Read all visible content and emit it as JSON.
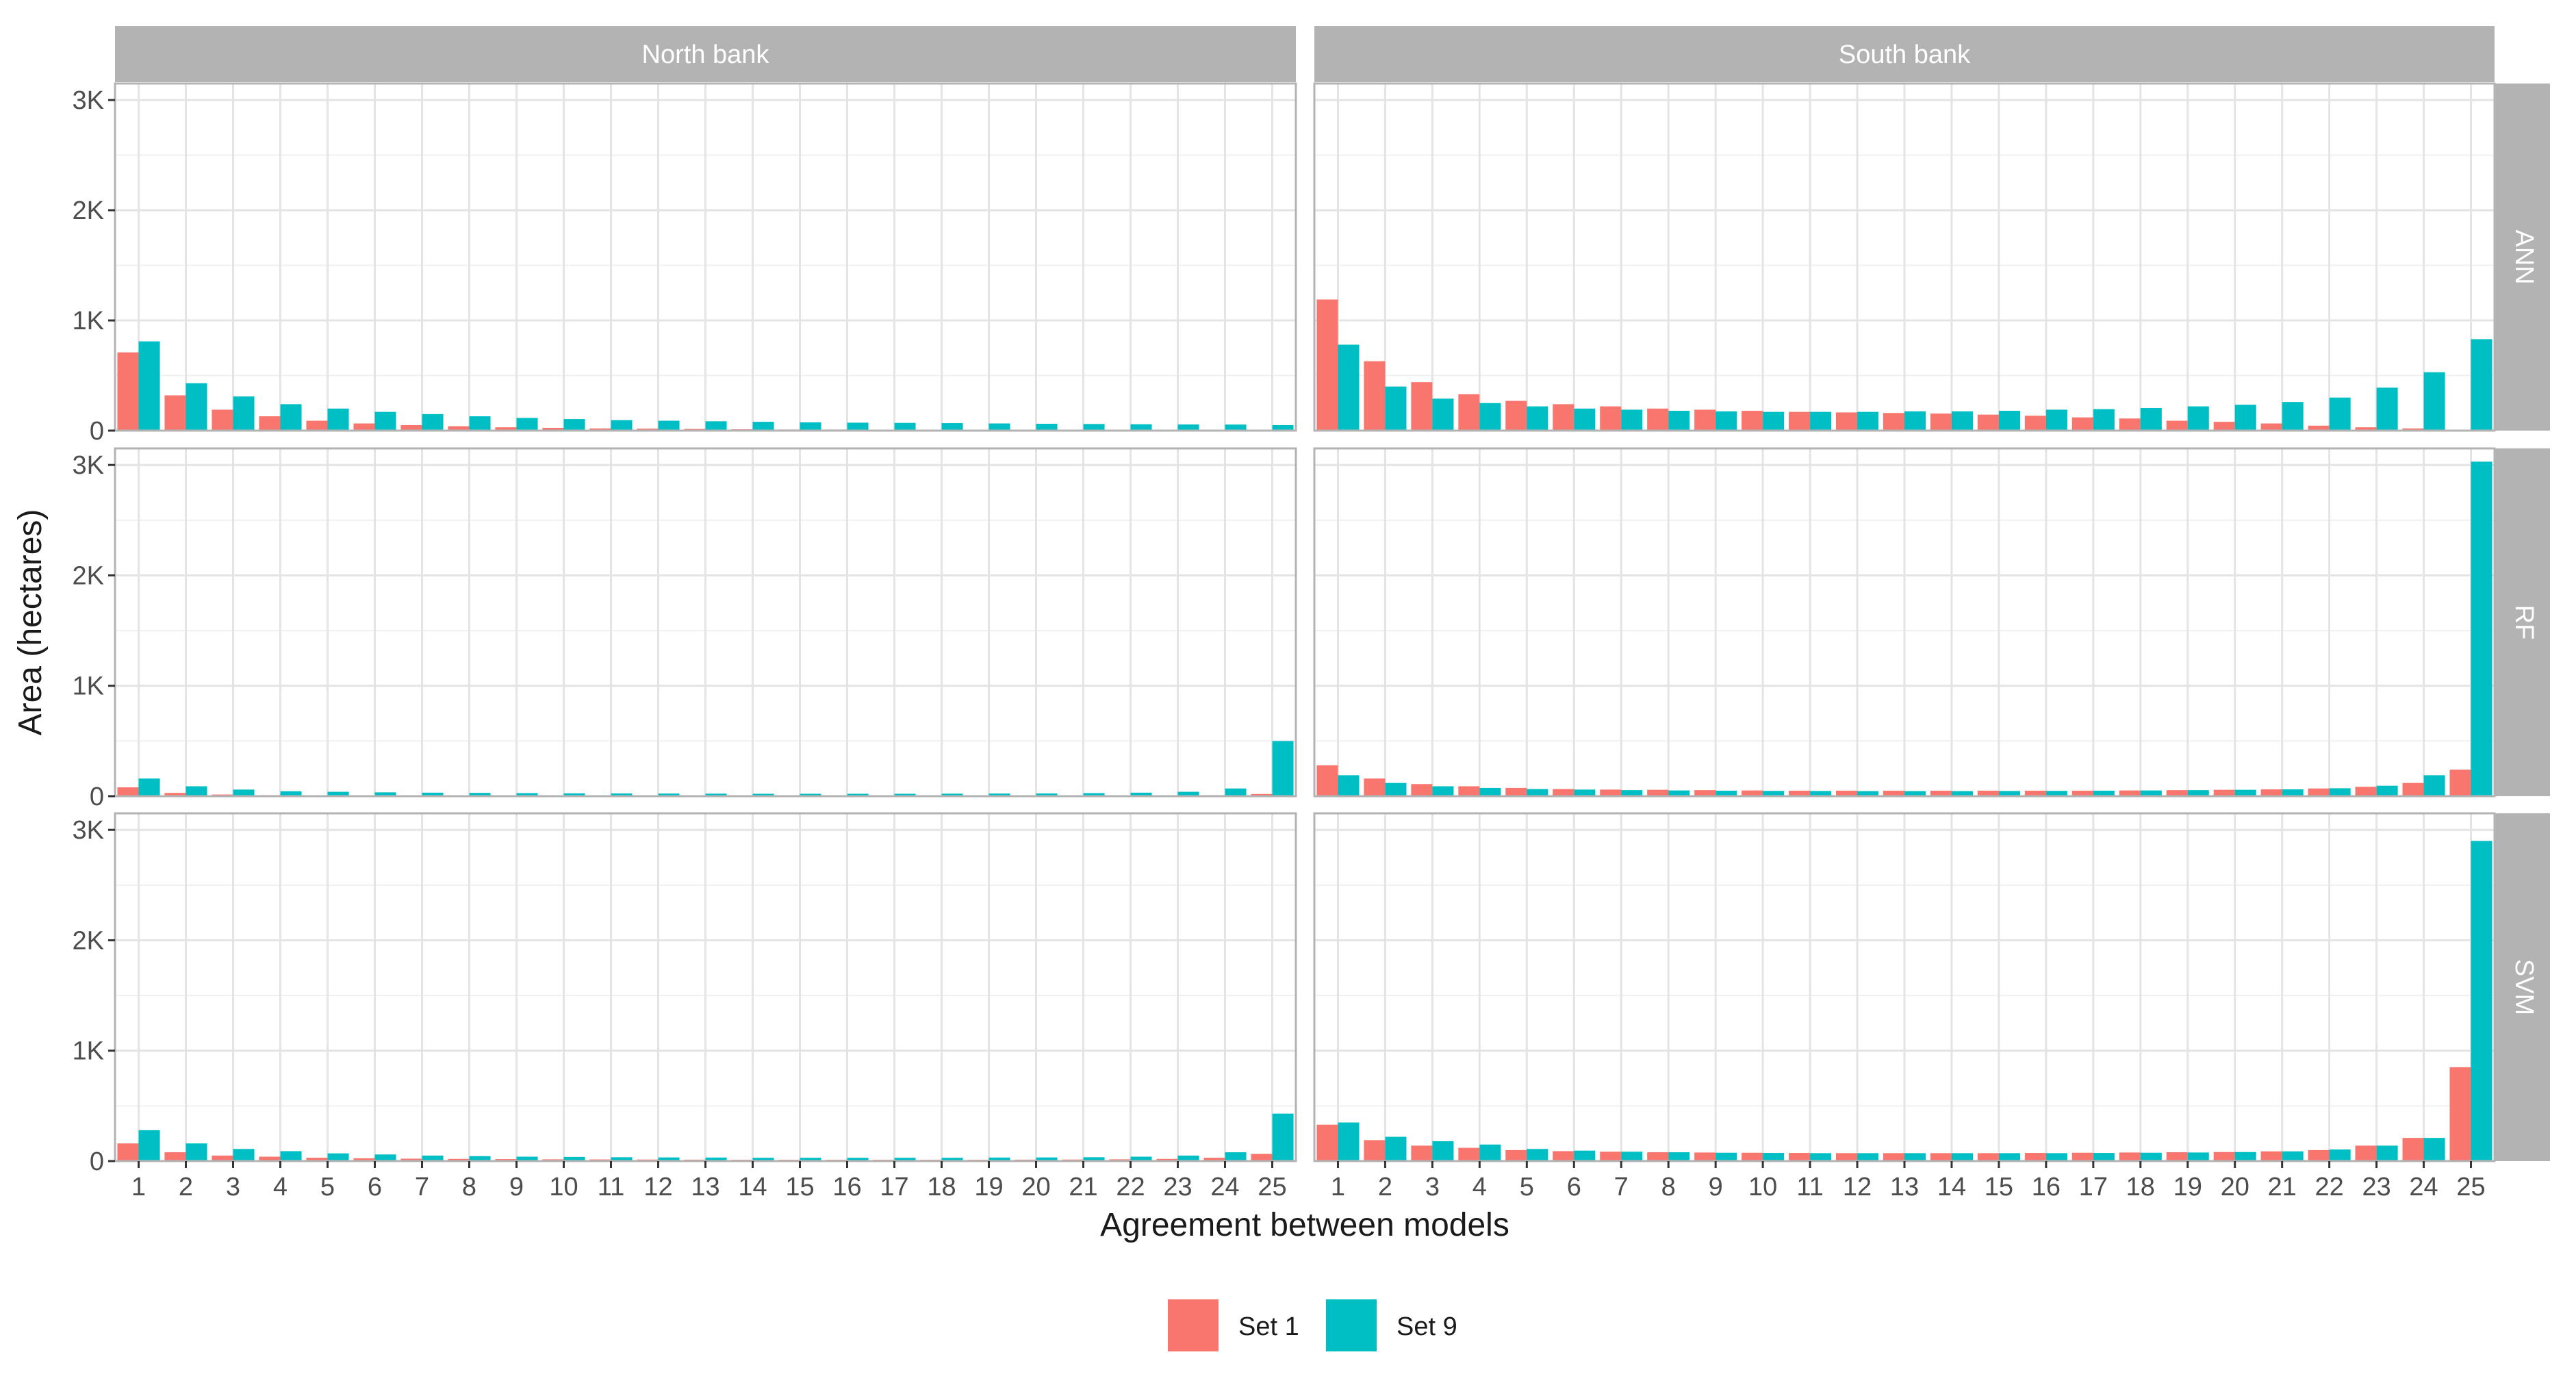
{
  "chart_data": {
    "type": "bar",
    "title": "",
    "xlabel": "Agreement between models",
    "ylabel": "Area (hectares)",
    "categories": [
      "1",
      "2",
      "3",
      "4",
      "5",
      "6",
      "7",
      "8",
      "9",
      "10",
      "11",
      "12",
      "13",
      "14",
      "15",
      "16",
      "17",
      "18",
      "19",
      "20",
      "21",
      "22",
      "23",
      "24",
      "25"
    ],
    "ylim": [
      0,
      3150
    ],
    "y_ticks": [
      0,
      1000,
      2000,
      3000
    ],
    "y_tick_labels": [
      "0",
      "1K",
      "2K",
      "3K"
    ],
    "legend": {
      "position": "bottom",
      "entries": [
        "Set 1",
        "Set 9"
      ]
    },
    "series_colors": {
      "Set 1": "#F8766D",
      "Set 9": "#00BFC4"
    },
    "panel_columns": [
      "North bank",
      "South bank"
    ],
    "panel_rows": [
      "ANN",
      "RF",
      "SVM"
    ],
    "panels": [
      {
        "row": "ANN",
        "column": "North bank",
        "series": [
          {
            "name": "Set 1",
            "values": [
              710,
              320,
              190,
              130,
              90,
              65,
              50,
              40,
              30,
              25,
              20,
              18,
              15,
              12,
              10,
              10,
              8,
              8,
              7,
              6,
              5,
              5,
              5,
              4,
              4
            ]
          },
          {
            "name": "Set 9",
            "values": [
              810,
              430,
              310,
              240,
              200,
              170,
              150,
              130,
              115,
              105,
              95,
              90,
              85,
              80,
              75,
              72,
              70,
              68,
              65,
              62,
              60,
              58,
              56,
              55,
              50
            ]
          }
        ]
      },
      {
        "row": "ANN",
        "column": "South bank",
        "series": [
          {
            "name": "Set 1",
            "values": [
              1190,
              630,
              440,
              330,
              270,
              240,
              220,
              200,
              190,
              180,
              170,
              165,
              160,
              155,
              145,
              135,
              120,
              110,
              90,
              80,
              65,
              45,
              30,
              20,
              5
            ]
          },
          {
            "name": "Set 9",
            "values": [
              780,
              400,
              290,
              250,
              220,
              200,
              190,
              180,
              175,
              170,
              170,
              170,
              175,
              175,
              180,
              190,
              195,
              205,
              220,
              235,
              260,
              300,
              390,
              530,
              830
            ]
          }
        ]
      },
      {
        "row": "RF",
        "column": "North bank",
        "series": [
          {
            "name": "Set 1",
            "values": [
              80,
              30,
              15,
              10,
              8,
              6,
              5,
              4,
              4,
              3,
              3,
              3,
              3,
              3,
              3,
              3,
              3,
              3,
              3,
              3,
              3,
              4,
              5,
              10,
              20
            ]
          },
          {
            "name": "Set 9",
            "values": [
              160,
              90,
              60,
              45,
              40,
              35,
              32,
              30,
              28,
              26,
              25,
              24,
              23,
              22,
              22,
              22,
              22,
              23,
              24,
              25,
              28,
              32,
              40,
              70,
              500
            ]
          }
        ]
      },
      {
        "row": "RF",
        "column": "South bank",
        "series": [
          {
            "name": "Set 1",
            "values": [
              280,
              160,
              110,
              90,
              75,
              65,
              60,
              58,
              55,
              52,
              50,
              50,
              50,
              50,
              50,
              50,
              50,
              52,
              55,
              58,
              62,
              70,
              85,
              120,
              240
            ]
          },
          {
            "name": "Set 9",
            "values": [
              190,
              120,
              90,
              75,
              65,
              60,
              55,
              52,
              50,
              48,
              47,
              46,
              46,
              46,
              47,
              48,
              50,
              52,
              55,
              58,
              62,
              72,
              95,
              190,
              3030
            ]
          }
        ]
      },
      {
        "row": "SVM",
        "column": "North bank",
        "series": [
          {
            "name": "Set 1",
            "values": [
              160,
              80,
              50,
              40,
              30,
              25,
              22,
              20,
              18,
              16,
              15,
              14,
              13,
              12,
              12,
              12,
              12,
              12,
              12,
              13,
              14,
              16,
              20,
              30,
              65
            ]
          },
          {
            "name": "Set 9",
            "values": [
              280,
              160,
              110,
              90,
              70,
              60,
              50,
              45,
              40,
              38,
              35,
              33,
              32,
              30,
              30,
              30,
              30,
              30,
              32,
              33,
              35,
              40,
              50,
              80,
              430
            ]
          }
        ]
      },
      {
        "row": "SVM",
        "column": "South bank",
        "series": [
          {
            "name": "Set 1",
            "values": [
              330,
              190,
              140,
              120,
              100,
              90,
              85,
              80,
              78,
              76,
              74,
              72,
              72,
              72,
              72,
              74,
              76,
              78,
              80,
              82,
              88,
              100,
              140,
              210,
              850
            ]
          },
          {
            "name": "Set 9",
            "values": [
              350,
              220,
              180,
              150,
              110,
              95,
              85,
              80,
              76,
              74,
              72,
              72,
              72,
              72,
              72,
              72,
              74,
              76,
              78,
              82,
              88,
              105,
              140,
              210,
              2900
            ]
          }
        ]
      }
    ]
  }
}
